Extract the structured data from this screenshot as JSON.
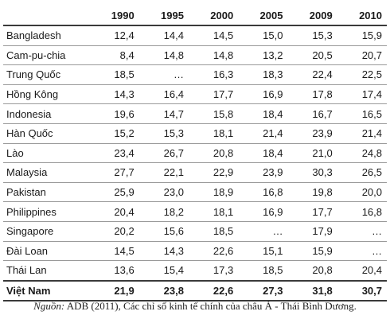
{
  "table": {
    "headers": [
      "",
      "1990",
      "1995",
      "2000",
      "2005",
      "2009",
      "2010"
    ],
    "rows": [
      {
        "country": "Bangladesh",
        "values": [
          "12,4",
          "14,4",
          "14,5",
          "15,0",
          "15,3",
          "15,9"
        ]
      },
      {
        "country": "Cam-pu-chia",
        "values": [
          "8,4",
          "14,8",
          "14,8",
          "13,2",
          "20,5",
          "20,7"
        ]
      },
      {
        "country": "Trung Quốc",
        "values": [
          "18,5",
          "…",
          "16,3",
          "18,3",
          "22,4",
          "22,5"
        ]
      },
      {
        "country": "Hồng Kông",
        "values": [
          "14,3",
          "16,4",
          "17,7",
          "16,9",
          "17,8",
          "17,4"
        ]
      },
      {
        "country": "Indonesia",
        "values": [
          "19,6",
          "14,7",
          "15,8",
          "18,4",
          "16,7",
          "16,5"
        ]
      },
      {
        "country": "Hàn Quốc",
        "values": [
          "15,2",
          "15,3",
          "18,1",
          "21,4",
          "23,9",
          "21,4"
        ]
      },
      {
        "country": "Lào",
        "values": [
          "23,4",
          "26,7",
          "20,8",
          "18,4",
          "21,0",
          "24,8"
        ]
      },
      {
        "country": "Malaysia",
        "values": [
          "27,7",
          "22,1",
          "22,9",
          "23,9",
          "30,3",
          "26,5"
        ]
      },
      {
        "country": "Pakistan",
        "values": [
          "25,9",
          "23,0",
          "18,9",
          "16,8",
          "19,8",
          "20,0"
        ]
      },
      {
        "country": "Philippines",
        "values": [
          "20,4",
          "18,2",
          "18,1",
          "16,9",
          "17,7",
          "16,8"
        ]
      },
      {
        "country": "Singapore",
        "values": [
          "20,2",
          "15,6",
          "18,5",
          "…",
          "17,9",
          "…"
        ]
      },
      {
        "country": "Đài Loan",
        "values": [
          "14,5",
          "14,3",
          "22,6",
          "15,1",
          "15,9",
          "…"
        ]
      },
      {
        "country": "Thái Lan",
        "values": [
          "13,6",
          "15,4",
          "17,3",
          "18,5",
          "20,8",
          "20,4"
        ]
      },
      {
        "country": "Việt Nam",
        "values": [
          "21,9",
          "23,8",
          "22,6",
          "27,3",
          "31,8",
          "30,7"
        ],
        "highlight": true
      }
    ]
  },
  "source": {
    "label": "Nguồn:",
    "text": " ADB (2011), Các chỉ số kinh tế chính của châu Á - Thái Bình Dương."
  }
}
